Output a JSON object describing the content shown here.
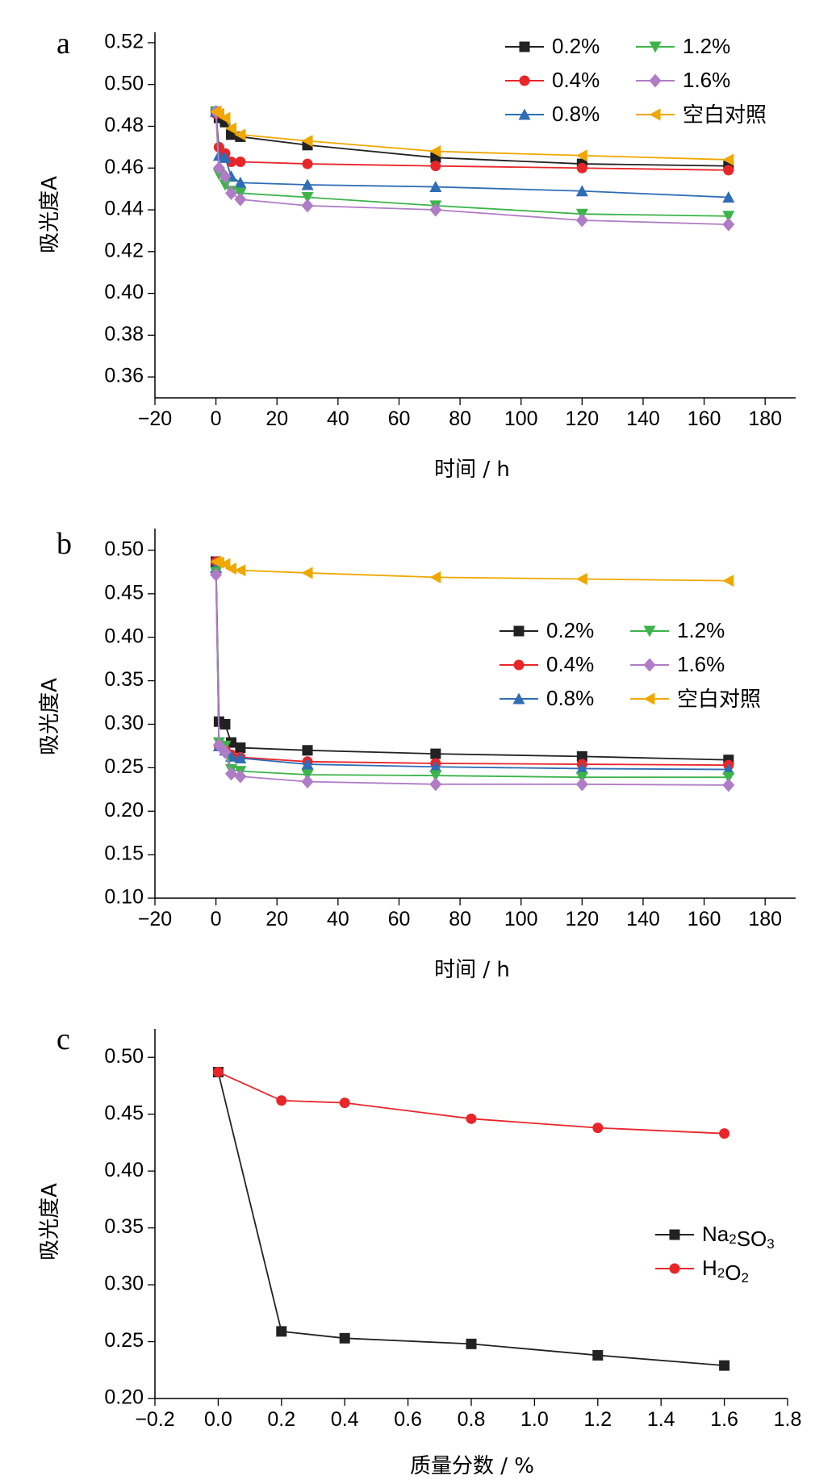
{
  "chart_data": [
    {
      "panel": "a",
      "type": "line",
      "xlabel": "时间 / h",
      "ylabel": "吸光度A",
      "xlim": [
        -20,
        190
      ],
      "ylim": [
        0.35,
        0.525
      ],
      "xticks": [
        -20,
        0,
        20,
        40,
        60,
        80,
        100,
        120,
        140,
        160,
        180
      ],
      "yticks": [
        0.36,
        0.38,
        0.4,
        0.42,
        0.44,
        0.46,
        0.48,
        0.5,
        0.52
      ],
      "ytick_decimals": 2,
      "legend_position": "top-right",
      "x": [
        0,
        1,
        3,
        5,
        8,
        30,
        72,
        120,
        168
      ],
      "series": [
        {
          "name": "0.2%",
          "color": "#222222",
          "marker": "square",
          "values": [
            0.487,
            0.484,
            0.482,
            0.476,
            0.475,
            0.471,
            0.465,
            0.462,
            0.461
          ]
        },
        {
          "name": "0.4%",
          "color": "#e8262a",
          "marker": "circle",
          "values": [
            0.486,
            0.47,
            0.467,
            0.463,
            0.463,
            0.462,
            0.461,
            0.46,
            0.459
          ]
        },
        {
          "name": "0.8%",
          "color": "#2f6db5",
          "marker": "triangle-up",
          "values": [
            0.487,
            0.466,
            0.465,
            0.456,
            0.453,
            0.452,
            0.451,
            0.449,
            0.446
          ]
        },
        {
          "name": "1.2%",
          "color": "#3cb44a",
          "marker": "triangle-down",
          "values": [
            0.487,
            0.457,
            0.452,
            0.449,
            0.448,
            0.446,
            0.442,
            0.438,
            0.437
          ]
        },
        {
          "name": "1.6%",
          "color": "#b07cc6",
          "marker": "diamond",
          "values": [
            0.487,
            0.46,
            0.456,
            0.448,
            0.445,
            0.442,
            0.44,
            0.435,
            0.433
          ]
        },
        {
          "name": "空白对照",
          "color": "#f0a800",
          "marker": "triangle-left",
          "values": [
            0.487,
            0.486,
            0.484,
            0.479,
            0.476,
            0.473,
            0.468,
            0.466,
            0.464
          ]
        }
      ]
    },
    {
      "panel": "b",
      "type": "line",
      "xlabel": "时间 / h",
      "ylabel": "吸光度A",
      "xlim": [
        -20,
        190
      ],
      "ylim": [
        0.1,
        0.525
      ],
      "xticks": [
        -20,
        0,
        20,
        40,
        60,
        80,
        100,
        120,
        140,
        160,
        180
      ],
      "yticks": [
        0.1,
        0.15,
        0.2,
        0.25,
        0.3,
        0.35,
        0.4,
        0.45,
        0.5
      ],
      "ytick_decimals": 2,
      "legend_position": "center-right",
      "x": [
        0,
        1,
        3,
        5,
        8,
        30,
        72,
        120,
        168
      ],
      "series": [
        {
          "name": "0.2%",
          "color": "#222222",
          "marker": "square",
          "values": [
            0.487,
            0.303,
            0.3,
            0.279,
            0.273,
            0.27,
            0.266,
            0.263,
            0.259
          ]
        },
        {
          "name": "0.4%",
          "color": "#e8262a",
          "marker": "circle",
          "values": [
            0.487,
            0.275,
            0.271,
            0.265,
            0.262,
            0.257,
            0.255,
            0.254,
            0.253
          ]
        },
        {
          "name": "0.8%",
          "color": "#2f6db5",
          "marker": "triangle-up",
          "values": [
            0.48,
            0.275,
            0.27,
            0.263,
            0.261,
            0.254,
            0.251,
            0.249,
            0.248
          ]
        },
        {
          "name": "1.2%",
          "color": "#3cb44a",
          "marker": "triangle-down",
          "values": [
            0.475,
            0.279,
            0.275,
            0.248,
            0.246,
            0.242,
            0.241,
            0.239,
            0.239
          ]
        },
        {
          "name": "1.6%",
          "color": "#b07cc6",
          "marker": "diamond",
          "values": [
            0.472,
            0.276,
            0.268,
            0.243,
            0.24,
            0.234,
            0.231,
            0.231,
            0.23
          ]
        },
        {
          "name": "空白对照",
          "color": "#f0a800",
          "marker": "triangle-left",
          "values": [
            0.487,
            0.486,
            0.484,
            0.479,
            0.477,
            0.474,
            0.469,
            0.467,
            0.465
          ]
        }
      ]
    },
    {
      "panel": "c",
      "type": "line",
      "xlabel": "质量分数 / %",
      "ylabel": "吸光度A",
      "xlim": [
        -0.2,
        1.8
      ],
      "ylim": [
        0.2,
        0.525
      ],
      "xticks": [
        -0.2,
        0.0,
        0.2,
        0.4,
        0.6,
        0.8,
        1.0,
        1.2,
        1.4,
        1.6,
        1.8
      ],
      "yticks": [
        0.2,
        0.25,
        0.3,
        0.35,
        0.4,
        0.45,
        0.5
      ],
      "xtick_decimals": 1,
      "ytick_decimals": 2,
      "legend_position": "center-right",
      "x": [
        0.0,
        0.2,
        0.4,
        0.8,
        1.2,
        1.6
      ],
      "series": [
        {
          "name": "Na₂SO₃",
          "color": "#222222",
          "marker": "square",
          "values": [
            0.487,
            0.259,
            0.253,
            0.248,
            0.238,
            0.229
          ]
        },
        {
          "name": "H₂O₂",
          "color": "#e8262a",
          "marker": "circle",
          "values": [
            0.487,
            0.462,
            0.46,
            0.446,
            0.438,
            0.433
          ]
        }
      ]
    }
  ]
}
